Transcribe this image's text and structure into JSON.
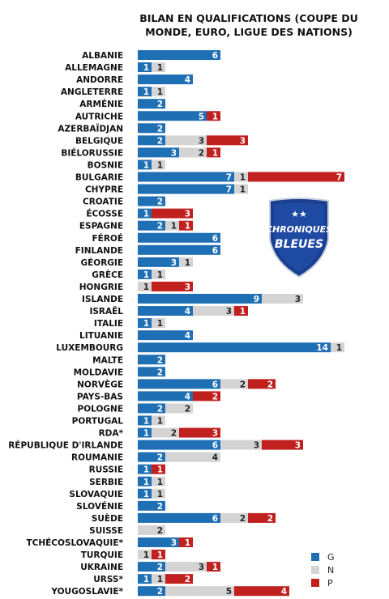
{
  "chart_data": {
    "type": "bar",
    "stacked": true,
    "orientation": "horizontal",
    "title": "BILAN EN QUALIFICATIONS (COUPE DU MONDE, EURO, LIGUE DES NATIONS)",
    "categories": [
      "ALBANIE",
      "ALLEMAGNE",
      "ANDORRE",
      "ANGLETERRE",
      "ARMÉNIE",
      "AUTRICHE",
      "AZERBAÏDJAN",
      "BELGIQUE",
      "BIÉLORUSSIE",
      "BOSNIE",
      "BULGARIE",
      "CHYPRE",
      "CROATIE",
      "ÉCOSSE",
      "ESPAGNE",
      "FÉROÉ",
      "FINLANDE",
      "GÉORGIE",
      "GRÈCE",
      "HONGRIE",
      "ISLANDE",
      "ISRAËL",
      "ITALIE",
      "LITUANIE",
      "LUXEMBOURG",
      "MALTE",
      "MOLDAVIE",
      "NORVÈGE",
      "PAYS-BAS",
      "POLOGNE",
      "PORTUGAL",
      "RDA*",
      "RÉPUBLIQUE D'IRLANDE",
      "ROUMANIE",
      "RUSSIE",
      "SERBIE",
      "SLOVAQUIE",
      "SLOVÉNIE",
      "SUÈDE",
      "SUISSE",
      "TCHÉCOSLOVAQUIE*",
      "TURQUIE",
      "UKRAINE",
      "URSS*",
      "YOUGOSLAVIE*"
    ],
    "series": [
      {
        "name": "G",
        "color": "#1f6fb5",
        "values": [
          6,
          1,
          4,
          1,
          2,
          5,
          2,
          2,
          3,
          1,
          7,
          7,
          2,
          1,
          2,
          6,
          6,
          3,
          1,
          0,
          9,
          4,
          1,
          4,
          14,
          2,
          2,
          6,
          4,
          2,
          1,
          1,
          6,
          2,
          1,
          1,
          1,
          2,
          6,
          0,
          3,
          0,
          2,
          1,
          2
        ]
      },
      {
        "name": "N",
        "color": "#d4d4d4",
        "values": [
          0,
          1,
          0,
          1,
          0,
          0,
          0,
          3,
          2,
          1,
          1,
          1,
          0,
          0,
          1,
          0,
          0,
          1,
          1,
          1,
          3,
          3,
          1,
          0,
          1,
          0,
          0,
          2,
          0,
          2,
          1,
          2,
          3,
          4,
          0,
          1,
          1,
          0,
          2,
          2,
          0,
          1,
          3,
          1,
          5
        ]
      },
      {
        "name": "P",
        "color": "#c0201e",
        "values": [
          0,
          0,
          0,
          0,
          0,
          1,
          0,
          3,
          1,
          0,
          7,
          0,
          0,
          3,
          1,
          0,
          0,
          0,
          0,
          3,
          0,
          1,
          0,
          0,
          0,
          0,
          0,
          2,
          2,
          0,
          0,
          3,
          3,
          0,
          1,
          0,
          0,
          0,
          2,
          0,
          1,
          1,
          1,
          2,
          4
        ]
      }
    ],
    "xlim": [
      0,
      15
    ],
    "grid": false,
    "legend_position": "bottom-right"
  },
  "logo": {
    "line1": "CHRONIQUES",
    "line2": "BLEUES",
    "stars": "★★"
  }
}
